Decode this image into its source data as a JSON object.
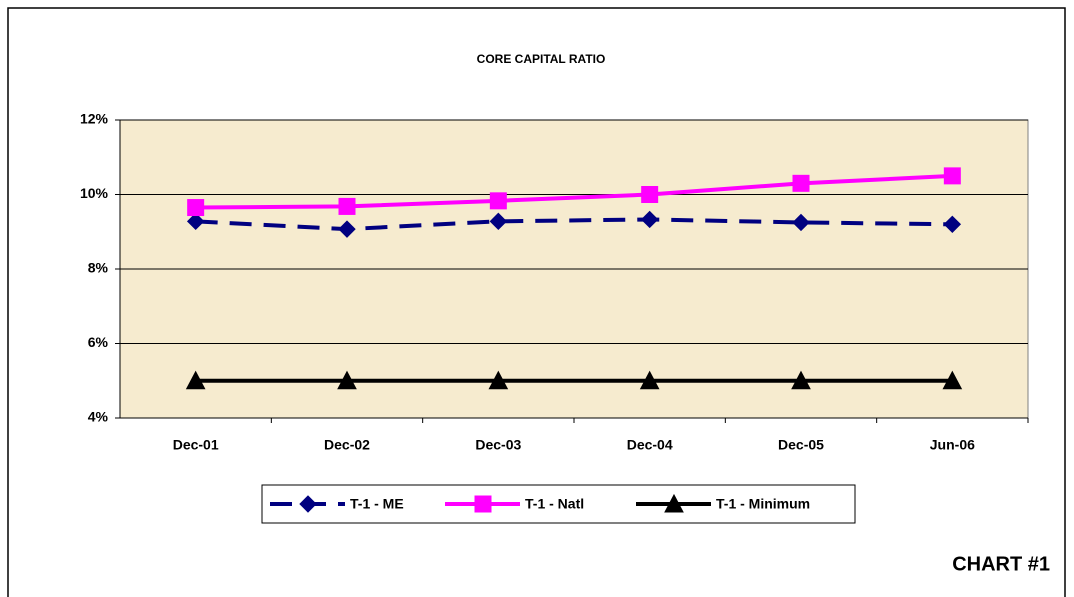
{
  "chart_data": {
    "type": "line",
    "title": "CORE CAPITAL RATIO",
    "categories": [
      "Dec-01",
      "Dec-02",
      "Dec-03",
      "Dec-04",
      "Dec-05",
      "Jun-06"
    ],
    "series": [
      {
        "name": "T-1 - ME",
        "color": "#000080",
        "marker": "diamond",
        "dashed": true,
        "values": [
          9.28,
          9.07,
          9.28,
          9.33,
          9.25,
          9.2
        ]
      },
      {
        "name": "T-1 - Natl",
        "color": "#ff00ff",
        "marker": "square",
        "dashed": false,
        "values": [
          9.65,
          9.68,
          9.83,
          10.0,
          10.3,
          10.5
        ]
      },
      {
        "name": "T-1 - Minimum",
        "color": "#000000",
        "marker": "triangle",
        "dashed": false,
        "values": [
          5,
          5,
          5,
          5,
          5,
          5
        ]
      }
    ],
    "ylim": [
      4,
      12
    ],
    "yticks": [
      {
        "value": 4,
        "label": "4%"
      },
      {
        "value": 6,
        "label": "6%"
      },
      {
        "value": 8,
        "label": "8%"
      },
      {
        "value": 10,
        "label": "10%"
      },
      {
        "value": 12,
        "label": "12%"
      }
    ],
    "grid": true,
    "legend": "bottom",
    "annotation": "CHART #1"
  }
}
